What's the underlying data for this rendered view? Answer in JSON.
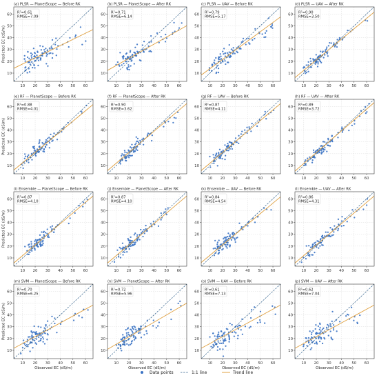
{
  "chart_data": {
    "type": "scatter",
    "xlabel": "Observed EC (dS/m)",
    "ylabel": "Predicted EC (dS/m)",
    "ticks": [
      10,
      20,
      30,
      40,
      50,
      60
    ],
    "xlim": [
      3,
      66
    ],
    "ylim": [
      3,
      66
    ],
    "grid": true,
    "colors": {
      "points": "#3b73c4",
      "one_to_one": "#2f5f8a",
      "trend": "#e0a040"
    },
    "legend": {
      "position": "bottom-center",
      "items": [
        {
          "label": "Data points",
          "style": "point"
        },
        {
          "label": "1:1 line",
          "style": "dashed"
        },
        {
          "label": "Trend line",
          "style": "solid"
        }
      ]
    },
    "panels": [
      {
        "title": "(a) PLSR — PlanetScope — Before RK",
        "r2_text": "R²=0.61",
        "rmse_text": "RMSE=7.09",
        "r2": 0.61,
        "rmse": 7.09,
        "trend": {
          "slope": 0.52,
          "intercept": 12.5
        },
        "spread": 1.0
      },
      {
        "title": "(b) PLSR — PlanetScope — After RK",
        "r2_text": "R²=0.71",
        "rmse_text": "RMSE=6.14",
        "r2": 0.71,
        "rmse": 6.14,
        "trend": {
          "slope": 0.6,
          "intercept": 10.5
        },
        "spread": 0.87
      },
      {
        "title": "(c) PLSR — UAV — Before RK",
        "r2_text": "R²=0.79",
        "rmse_text": "RMSE=5.17",
        "r2": 0.79,
        "rmse": 5.17,
        "trend": {
          "slope": 0.78,
          "intercept": 6.0
        },
        "spread": 0.73
      },
      {
        "title": "(d) PLSR — UAV — After RK",
        "r2_text": "R²=0.90",
        "rmse_text": "RMSE=3.50",
        "r2": 0.9,
        "rmse": 3.5,
        "trend": {
          "slope": 0.88,
          "intercept": 3.5
        },
        "spread": 0.5
      },
      {
        "title": "(e) RF — PlanetScope — Before RK",
        "r2_text": "R²=0.88",
        "rmse_text": "RMSE=4.01",
        "r2": 0.88,
        "rmse": 4.01,
        "trend": {
          "slope": 0.88,
          "intercept": 3.5
        },
        "spread": 0.57
      },
      {
        "title": "(f) RF — PlanetScope — After RK",
        "r2_text": "R²=0.90",
        "rmse_text": "RMSE=3.62",
        "r2": 0.9,
        "rmse": 3.62,
        "trend": {
          "slope": 0.9,
          "intercept": 3.0
        },
        "spread": 0.52
      },
      {
        "title": "(g) RF — UAV — Before RK",
        "r2_text": "R²=0.87",
        "rmse_text": "RMSE=4.11",
        "r2": 0.87,
        "rmse": 4.11,
        "trend": {
          "slope": 0.9,
          "intercept": 3.0
        },
        "spread": 0.58
      },
      {
        "title": "(h) RF — UAV — After RK",
        "r2_text": "R²=0.89",
        "rmse_text": "RMSE=3.72",
        "r2": 0.89,
        "rmse": 3.72,
        "trend": {
          "slope": 0.92,
          "intercept": 2.5
        },
        "spread": 0.53
      },
      {
        "title": "(i) Ensemble — PlanetScope — Before RK",
        "r2_text": "R²=0.87",
        "rmse_text": "RMSE=4.10",
        "r2": 0.87,
        "rmse": 4.1,
        "trend": {
          "slope": 0.9,
          "intercept": 3.0
        },
        "spread": 0.58
      },
      {
        "title": "(j) Ensemble — PlanetScope — After RK",
        "r2_text": "R²=0.87",
        "rmse_text": "RMSE=4.10",
        "r2": 0.87,
        "rmse": 4.1,
        "trend": {
          "slope": 0.9,
          "intercept": 3.0
        },
        "spread": 0.58
      },
      {
        "title": "(k) Ensemble — UAV — Before RK",
        "r2_text": "R²=0.84",
        "rmse_text": "RMSE=4.54",
        "r2": 0.84,
        "rmse": 4.54,
        "trend": {
          "slope": 0.88,
          "intercept": 3.5
        },
        "spread": 0.64
      },
      {
        "title": "(l) Ensemble — UAV — After RK",
        "r2_text": "R²=0.86",
        "rmse_text": "RMSE=4.31",
        "r2": 0.86,
        "rmse": 4.31,
        "trend": {
          "slope": 0.9,
          "intercept": 3.0
        },
        "spread": 0.61
      },
      {
        "title": "(m) SVM — PlanetScope — Before RK",
        "r2_text": "R²=0.70",
        "rmse_text": "RMSE=6.25",
        "r2": 0.7,
        "rmse": 6.25,
        "trend": {
          "slope": 0.58,
          "intercept": 10.0
        },
        "spread": 0.88
      },
      {
        "title": "(n) SVM — PlanetScope — After RK",
        "r2_text": "R²=0.72",
        "rmse_text": "RMSE=5.96",
        "r2": 0.72,
        "rmse": 5.96,
        "trend": {
          "slope": 0.62,
          "intercept": 9.0
        },
        "spread": 0.84
      },
      {
        "title": "(o) SVM — UAV — Before RK",
        "r2_text": "R²=0.61",
        "rmse_text": "RMSE=7.13",
        "r2": 0.61,
        "rmse": 7.13,
        "trend": {
          "slope": 0.58,
          "intercept": 10.0
        },
        "spread": 1.0
      },
      {
        "title": "(p) SVM — UAV — After RK",
        "r2_text": "R²=0.62",
        "rmse_text": "RMSE=7.04",
        "r2": 0.62,
        "rmse": 7.04,
        "trend": {
          "slope": 0.58,
          "intercept": 10.0
        },
        "spread": 0.99
      }
    ]
  }
}
